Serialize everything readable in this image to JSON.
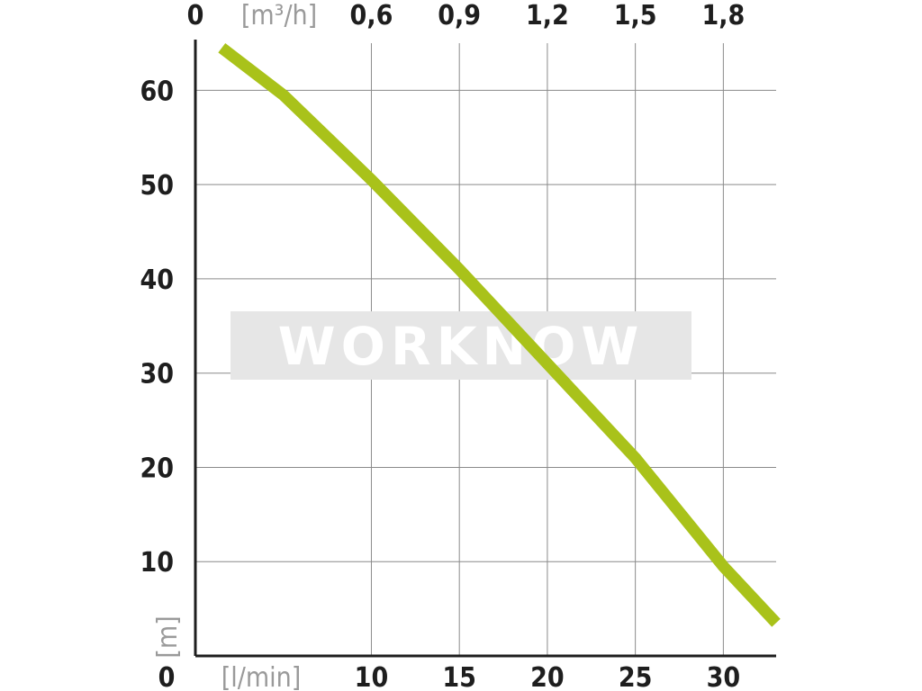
{
  "chart_data": {
    "type": "line",
    "title": "",
    "xlabel": "[l/min]",
    "x2label": "[m³/h]",
    "ylabel": "[m]",
    "xlim": [
      0,
      33
    ],
    "ylim": [
      0,
      65
    ],
    "x_ticks": [
      0,
      10,
      15,
      20,
      25,
      30
    ],
    "x_tick_labels": [
      "0",
      "10",
      "15",
      "20",
      "25",
      "30"
    ],
    "x2_ticks": [
      0,
      10,
      15,
      20,
      25,
      30
    ],
    "x2_tick_labels": [
      "0",
      "0,6",
      "0,9",
      "1,2",
      "1,5",
      "1,8"
    ],
    "y_ticks": [
      10,
      20,
      30,
      40,
      50,
      60
    ],
    "y_tick_labels": [
      "10",
      "20",
      "30",
      "40",
      "50",
      "60"
    ],
    "grid": true,
    "watermark": "WORKNOW",
    "series": [
      {
        "color": "#a9c21a",
        "x": [
          1.5,
          5,
          10,
          15,
          20,
          25,
          30,
          33
        ],
        "y": [
          64.5,
          59.5,
          50.5,
          41,
          31,
          21,
          9.5,
          3.5
        ]
      }
    ]
  }
}
